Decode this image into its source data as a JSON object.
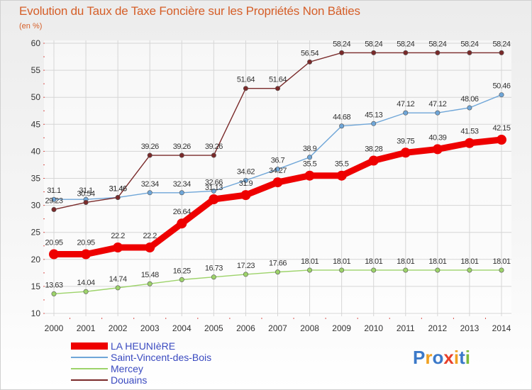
{
  "title": "Evolution du Taux de Taxe Foncière sur les Propriétés Non Bâties",
  "unit_label": "(en %)",
  "logo": {
    "text": "Proxiti",
    "letters": [
      {
        "ch": "P",
        "color": "#3b79c9"
      },
      {
        "ch": "r",
        "color": "#f0a020"
      },
      {
        "ch": "o",
        "color": "#3b79c9"
      },
      {
        "ch": "x",
        "color": "#e8402a"
      },
      {
        "ch": "i",
        "color": "#f0a020"
      },
      {
        "ch": "t",
        "color": "#3b79c9"
      },
      {
        "ch": "i",
        "color": "#7dba3a"
      }
    ]
  },
  "chart_data": {
    "type": "line",
    "title": "Evolution du Taux de Taxe Foncière sur les Propriétés Non Bâties",
    "ylabel": "(en %)",
    "xlabel": "",
    "x": [
      "2000",
      "2001",
      "2002",
      "2003",
      "2004",
      "2005",
      "2006",
      "2007",
      "2008",
      "2009",
      "2010",
      "2011",
      "2012",
      "2013",
      "2014"
    ],
    "ylim": [
      10,
      60
    ],
    "yticks": [
      10,
      15,
      20,
      25,
      30,
      35,
      40,
      45,
      50,
      55,
      60
    ],
    "grid": true,
    "legend_position": "bottom-left",
    "series": [
      {
        "name": "LA HEUNIèRE",
        "color": "#ee0000",
        "emphasis": true,
        "values": [
          20.95,
          20.95,
          22.2,
          22.2,
          26.64,
          31.13,
          31.9,
          34.27,
          35.5,
          35.5,
          38.28,
          39.75,
          40.39,
          41.53,
          42.15
        ],
        "labels": [
          "20.95",
          "20.95",
          "22.2",
          "22.2",
          "26.64",
          "31.13",
          "31.9",
          "34.27",
          "35.5",
          "35.5",
          "38.28",
          "39.75",
          "40.39",
          "41.53",
          "42.15"
        ]
      },
      {
        "name": "Saint-Vincent-des-Bois",
        "color": "#6fa6d8",
        "emphasis": false,
        "values": [
          31.1,
          31.1,
          31.46,
          32.34,
          32.34,
          32.66,
          34.62,
          36.7,
          38.9,
          44.68,
          45.13,
          47.12,
          47.12,
          48.06,
          50.46
        ],
        "labels": [
          "31.1",
          "31.1",
          "31.46",
          "32.34",
          "32.34",
          "32.66",
          "34.62",
          "36.7",
          "38.9",
          "44.68",
          "45.13",
          "47.12",
          "47.12",
          "48.06",
          "50.46"
        ]
      },
      {
        "name": "Mercey",
        "color": "#9dd36a",
        "emphasis": false,
        "values": [
          13.63,
          14.04,
          14.74,
          15.48,
          16.25,
          16.73,
          17.23,
          17.66,
          18.01,
          18.01,
          18.01,
          18.01,
          18.01,
          18.01,
          18.01
        ],
        "labels": [
          "13.63",
          "14.04",
          "14.74",
          "15.48",
          "16.25",
          "16.73",
          "17.23",
          "17.66",
          "18.01",
          "18.01",
          "18.01",
          "18.01",
          "18.01",
          "18.01",
          "18.01"
        ]
      },
      {
        "name": "Douains",
        "color": "#7a2a2a",
        "emphasis": false,
        "values": [
          29.23,
          30.54,
          31.46,
          39.26,
          39.26,
          39.26,
          51.64,
          51.64,
          56.54,
          58.24,
          58.24,
          58.24,
          58.24,
          58.24,
          58.24
        ],
        "labels": [
          "29.23",
          "30.54",
          "31.46",
          "39.26",
          "39.26",
          "39.26",
          "51.64",
          "51.64",
          "56.54",
          "58.24",
          "58.24",
          "58.24",
          "58.24",
          "58.24",
          "58.24"
        ]
      }
    ]
  }
}
